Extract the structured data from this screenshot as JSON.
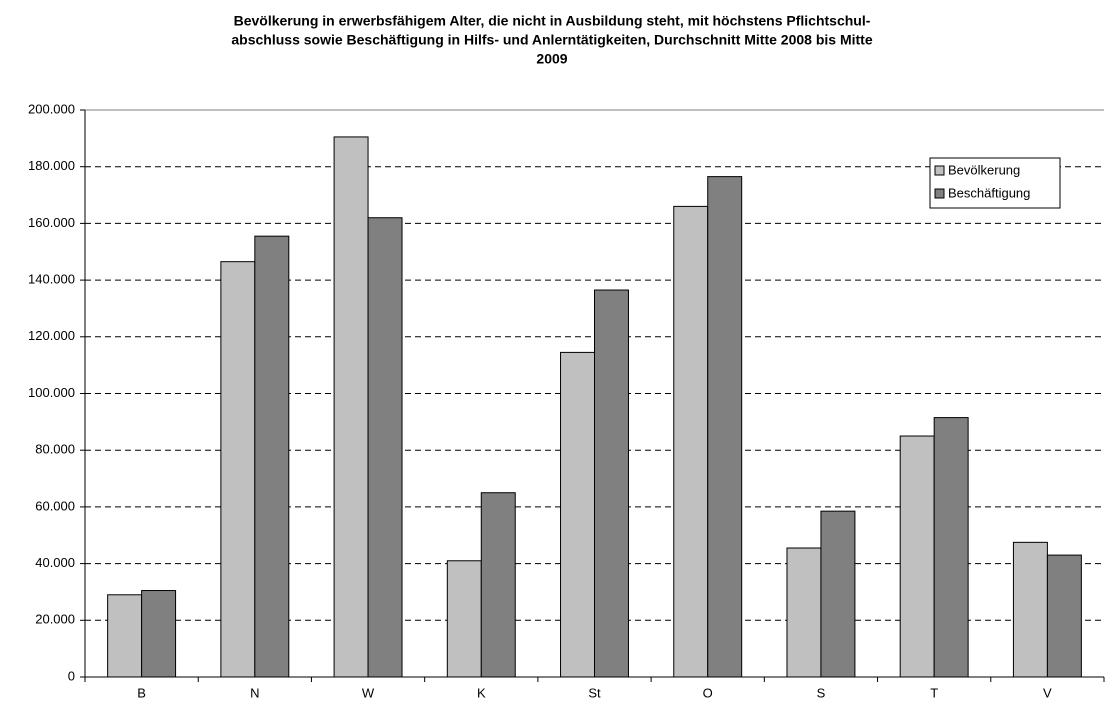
{
  "chart_data": {
    "type": "bar",
    "title": [
      "Bevölkerung in erwerbsfähigem Alter, die nicht in Ausbildung steht, mit höchstens Pflichtschul-",
      "abschluss sowie Beschäftigung in Hilfs- und Anlerntätigkeiten, Durchschnitt Mitte 2008 bis Mitte",
      "2009"
    ],
    "categories": [
      "B",
      "N",
      "W",
      "K",
      "St",
      "O",
      "S",
      "T",
      "V"
    ],
    "series": [
      {
        "name": "Bevölkerung",
        "color": "#c0c0c0",
        "values": [
          29000,
          146500,
          190500,
          41000,
          114500,
          166000,
          45500,
          85000,
          47500
        ]
      },
      {
        "name": "Beschäftigung",
        "color": "#808080",
        "values": [
          30500,
          155500,
          162000,
          65000,
          136500,
          176500,
          58500,
          91500,
          43000
        ]
      }
    ],
    "ylim": [
      0,
      200000
    ],
    "yticks": [
      0,
      {
        "value": 20000,
        "label": "20.000"
      },
      {
        "value": 40000,
        "label": "40.000"
      },
      {
        "value": 60000,
        "label": "60.000"
      },
      {
        "value": 80000,
        "label": "80.000"
      },
      {
        "value": 100000,
        "label": "100.000"
      },
      {
        "value": 120000,
        "label": "120.000"
      },
      {
        "value": 140000,
        "label": "140.000"
      },
      {
        "value": 160000,
        "label": "160.000"
      },
      {
        "value": 180000,
        "label": "180.000"
      },
      {
        "value": 200000,
        "label": "200.000"
      }
    ],
    "grid": true,
    "legend": "upper right"
  }
}
